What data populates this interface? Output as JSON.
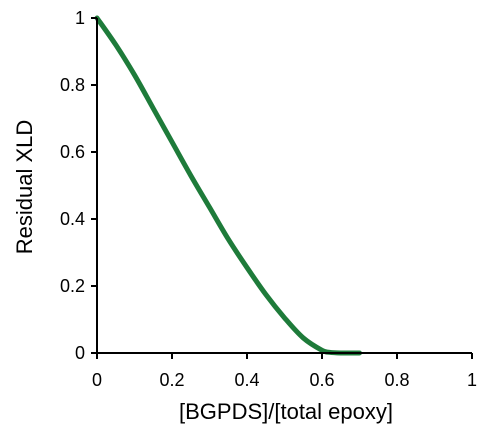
{
  "chart_data": {
    "type": "line",
    "title": "",
    "xlabel": "[BGPDS]/[total epoxy]",
    "ylabel": "Residual XLD",
    "xlim": [
      0,
      1
    ],
    "ylim": [
      0,
      1
    ],
    "x_ticks": [
      "0",
      "0.2",
      "0.4",
      "0.6",
      "0.8",
      "1"
    ],
    "y_ticks": [
      "0",
      "0.2",
      "0.4",
      "0.6",
      "0.8",
      "1"
    ],
    "grid": false,
    "legend": "none",
    "series": [
      {
        "color": "#1e7b3a",
        "x": [
          0,
          0.05,
          0.1,
          0.15,
          0.2,
          0.25,
          0.3,
          0.35,
          0.4,
          0.45,
          0.5,
          0.55,
          0.6,
          0.62,
          0.65,
          0.7
        ],
        "y": [
          1.0,
          0.92,
          0.83,
          0.73,
          0.63,
          0.53,
          0.435,
          0.34,
          0.255,
          0.175,
          0.105,
          0.045,
          0.008,
          0.002,
          0.0,
          0.0
        ]
      }
    ]
  }
}
